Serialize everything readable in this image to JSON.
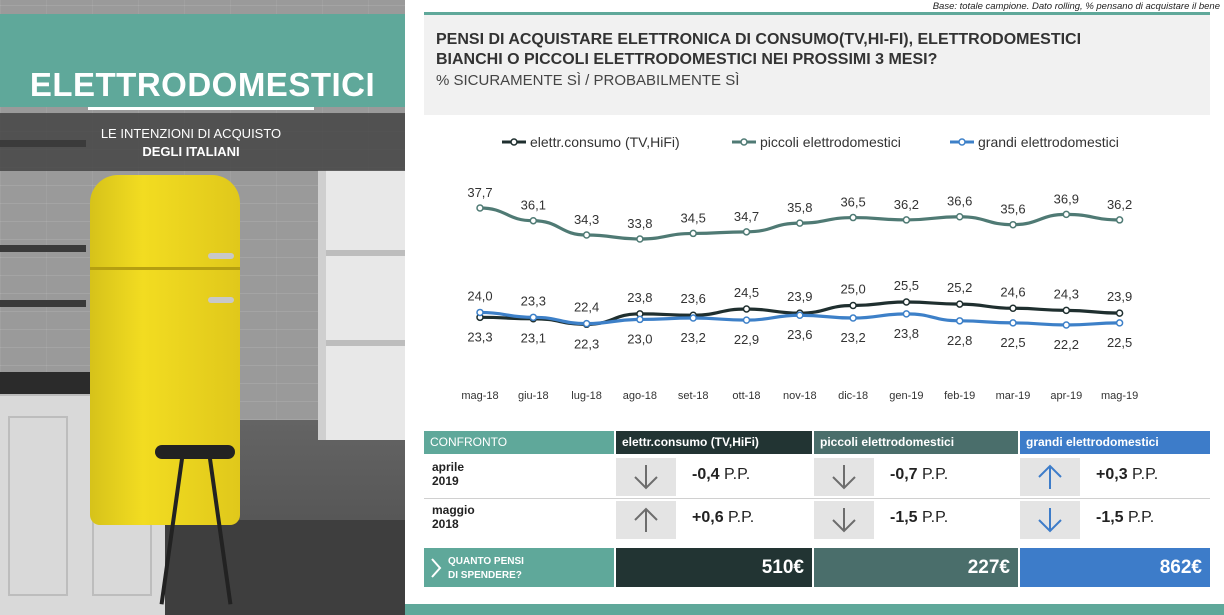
{
  "panel": {
    "title": "ELETTRODOMESTICI",
    "subtitle_line1": "LE INTENZIONI  DI ACQUISTO",
    "subtitle_line2": "DEGLI ITALIANI"
  },
  "base_note": "Base: totale campione.  Dato rolling, % pensano di acquistare il bene",
  "question": {
    "line1": "PENSI DI ACQUISTARE ELETTRONICA DI CONSUMO(TV,HI-FI), ELETTRODOMESTICI",
    "line2": "BIANCHI O PICCOLI ELETTRODOMESTICI NEI PROSSIMI 3 MESI?",
    "subtitle": "% SICURAMENTE SÌ / PROBABILMENTE SÌ"
  },
  "chart_data": {
    "type": "line",
    "title": "",
    "xlabel": "",
    "ylabel": "",
    "legend_position": "top",
    "grid": false,
    "categories": [
      "mag-18",
      "giu-18",
      "lug-18",
      "ago-18",
      "set-18",
      "ott-18",
      "nov-18",
      "dic-18",
      "gen-19",
      "feb-19",
      "mar-19",
      "apr-19",
      "mag-19"
    ],
    "series": [
      {
        "name": "elettr.consumo (TV,HiFi)",
        "color": "#1f2f2f",
        "values": [
          23.3,
          23.1,
          22.3,
          23.8,
          23.6,
          24.5,
          23.9,
          25.0,
          25.5,
          25.2,
          24.6,
          24.3,
          23.9
        ],
        "labels": [
          "23,3",
          "23,1",
          "22,3",
          "23,8",
          "23,6",
          "24,5",
          "23,9",
          "25,0",
          "25,5",
          "25,2",
          "24,6",
          "24,3",
          "23,9"
        ]
      },
      {
        "name": "piccoli elettrodomestici",
        "color": "#4f7a74",
        "values": [
          37.7,
          36.1,
          34.3,
          33.8,
          34.5,
          34.7,
          35.8,
          36.5,
          36.2,
          36.6,
          35.6,
          36.9,
          36.2
        ],
        "labels": [
          "37,7",
          "36,1",
          "34,3",
          "33,8",
          "34,5",
          "34,7",
          "35,8",
          "36,5",
          "36,2",
          "36,6",
          "35,6",
          "36,9",
          "36,2"
        ]
      },
      {
        "name": "grandi elettrodomestici",
        "color": "#3d80c8",
        "values": [
          24.0,
          23.3,
          22.4,
          23.0,
          23.2,
          22.9,
          23.6,
          23.2,
          23.8,
          22.8,
          22.5,
          22.2,
          22.5
        ],
        "labels": [
          "24,0",
          "23,3",
          "22,4",
          "23,0",
          "23,2",
          "22,9",
          "23,6",
          "23,2",
          "23,8",
          "22,8",
          "22,5",
          "22,2",
          "22,5"
        ]
      }
    ]
  },
  "comparison": {
    "header": "CONFRONTO",
    "columns": [
      {
        "name": "elettr.consumo  (TV,HiFi)",
        "color": "#223433"
      },
      {
        "name": "piccoli  elettrodomestici",
        "color": "#4a6e6b"
      },
      {
        "name": "grandi  elettrodomestici",
        "color": "#3d7cc9"
      }
    ],
    "rows": [
      {
        "label_line1": "aprile",
        "label_line2": "2019",
        "cells": [
          {
            "direction": "down",
            "icon": "arrow-down-icon",
            "value": "-0,4",
            "unit": " P.P.",
            "arrow_color": "#6d6d6d"
          },
          {
            "direction": "down",
            "icon": "arrow-down-icon",
            "value": "-0,7",
            "unit": " P.P.",
            "arrow_color": "#6d6d6d"
          },
          {
            "direction": "up",
            "icon": "arrow-up-icon",
            "value": "+0,3",
            "unit": " P.P.",
            "arrow_color": "#3d7cc9"
          }
        ]
      },
      {
        "label_line1": "maggio",
        "label_line2": "2018",
        "cells": [
          {
            "direction": "up",
            "icon": "arrow-up-icon",
            "value": "+0,6",
            "unit": " P.P.",
            "arrow_color": "#6d6d6d"
          },
          {
            "direction": "down",
            "icon": "arrow-down-icon",
            "value": "-1,5",
            "unit": " P.P.",
            "arrow_color": "#6d6d6d"
          },
          {
            "direction": "down",
            "icon": "arrow-down-icon",
            "value": "-1,5",
            "unit": " P.P.",
            "arrow_color": "#3d7cc9"
          }
        ]
      }
    ]
  },
  "spend": {
    "label_line1": "QUANTO PENSI",
    "label_line2": "DI SPENDERE?",
    "values": [
      {
        "value": "510€",
        "color": "#223433"
      },
      {
        "value": "227€",
        "color": "#4a6e6b"
      },
      {
        "value": "862€",
        "color": "#3d7cc9"
      }
    ]
  },
  "colors": {
    "accent": "#5fa89a"
  }
}
